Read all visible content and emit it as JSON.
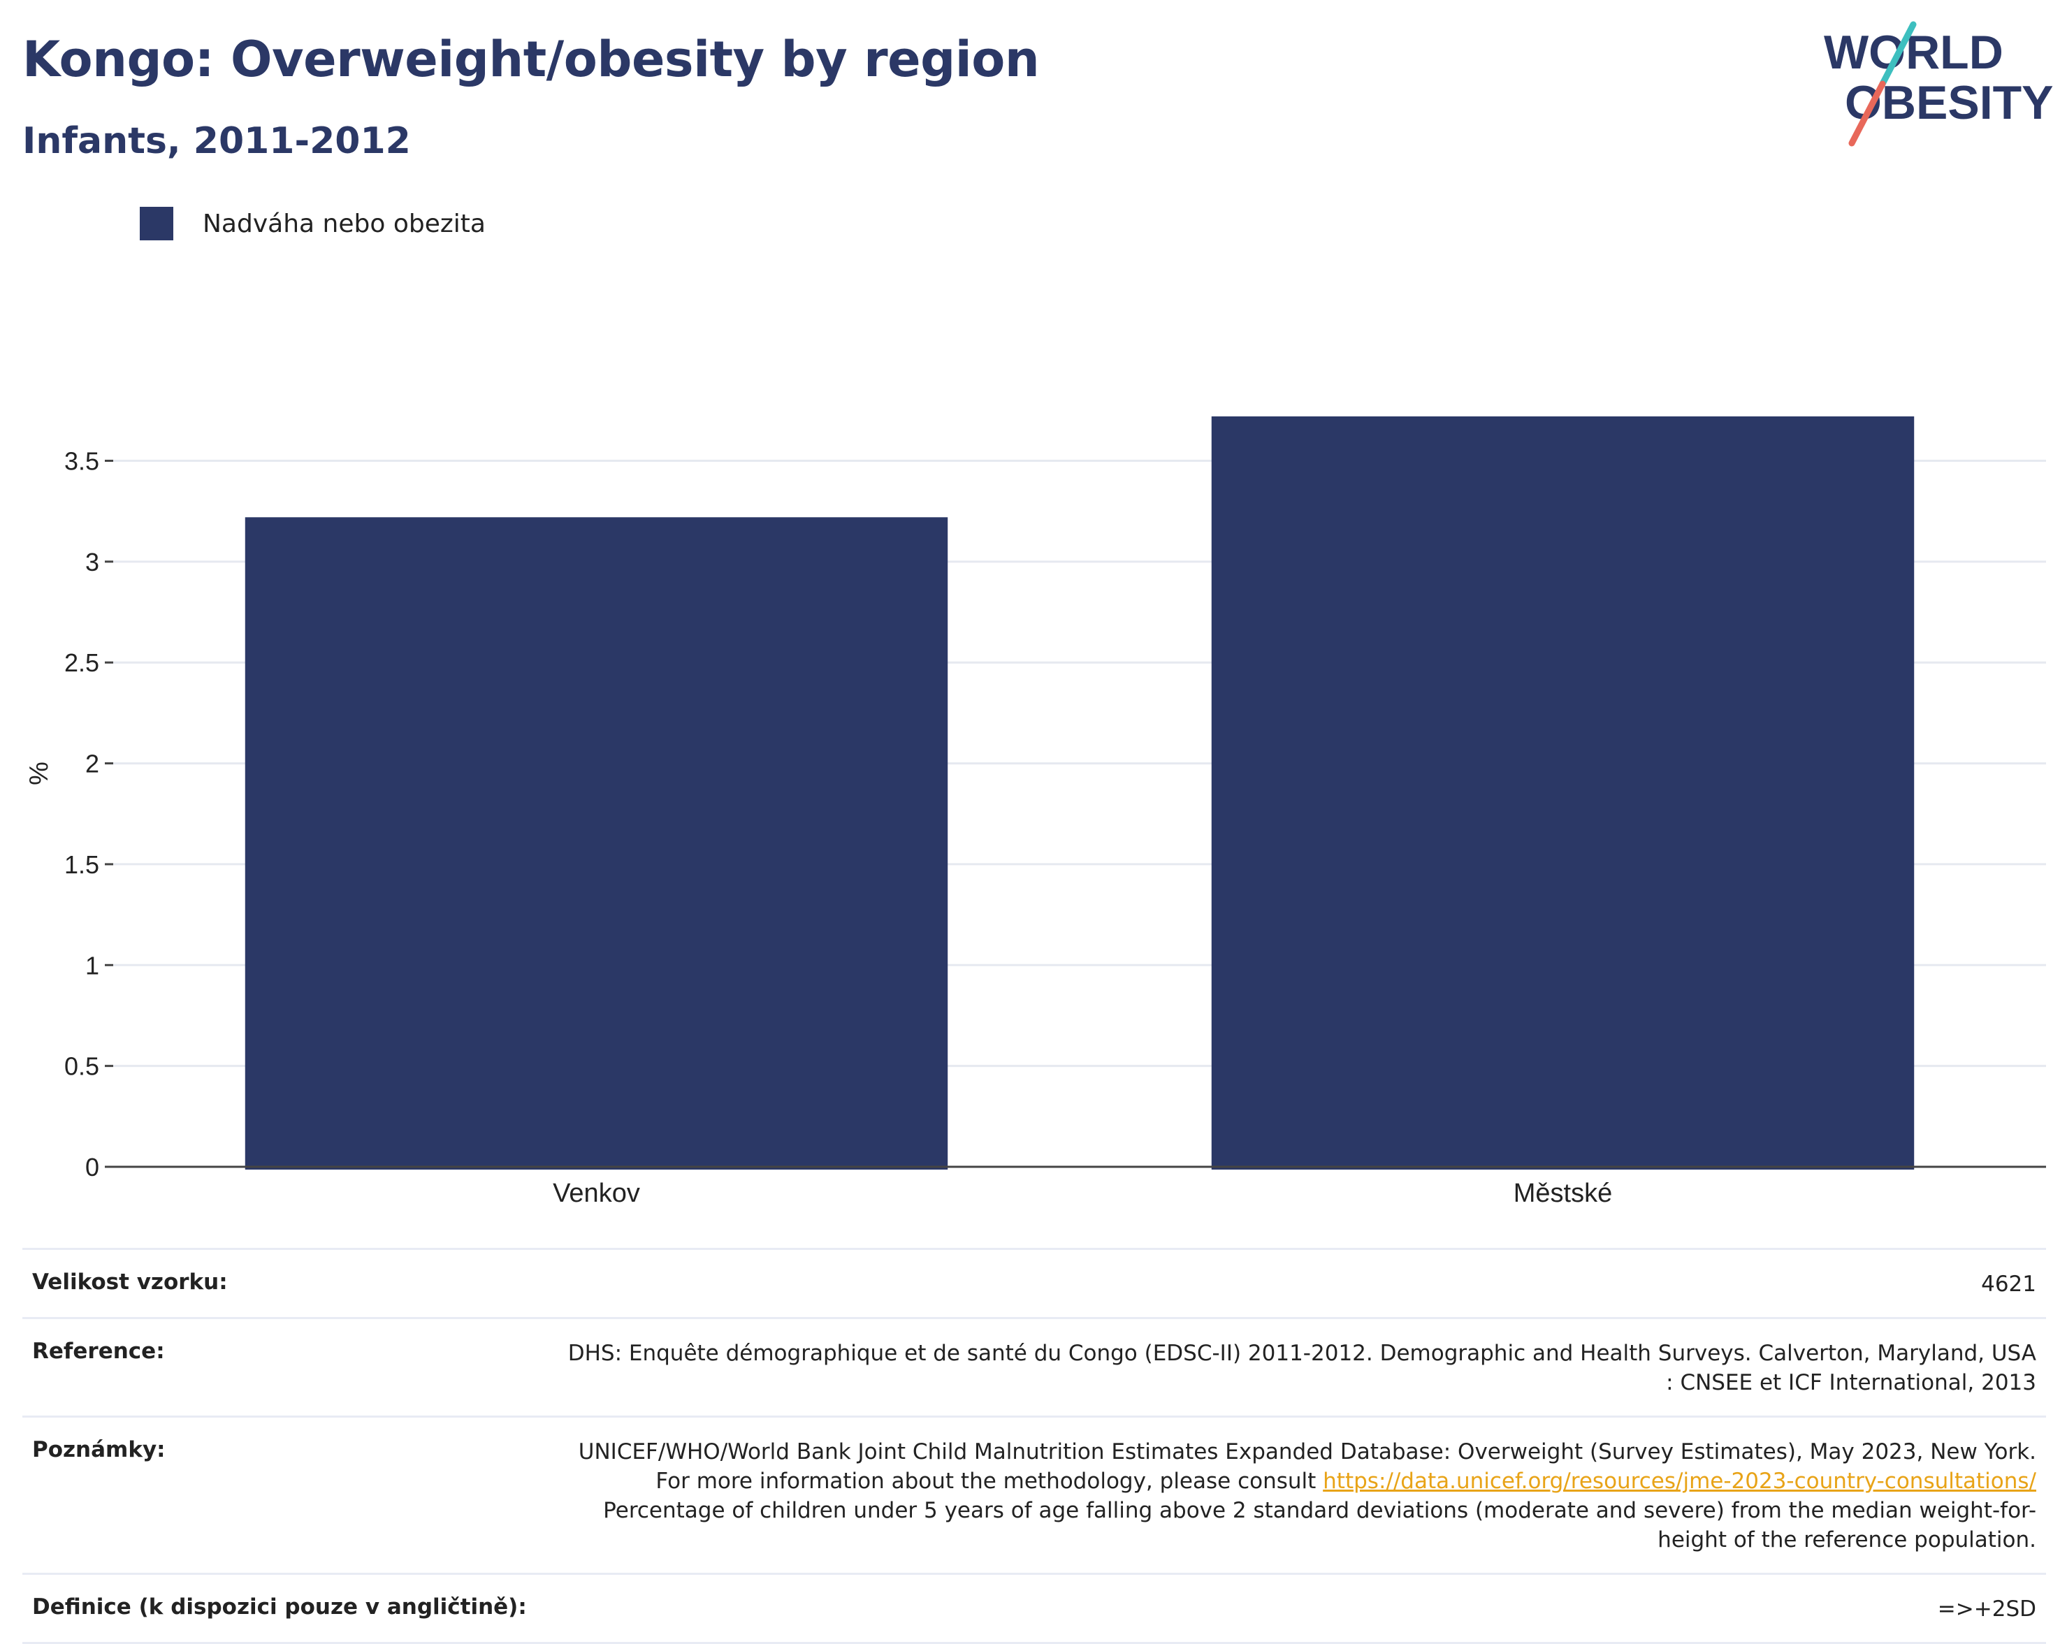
{
  "header": {
    "title": "Kongo: Overweight/obesity by region",
    "subtitle": "Infants, 2011-2012"
  },
  "logo": {
    "line1": "WORLD",
    "line2": "OBESITY",
    "slash_colors": [
      "#3dbfbf",
      "#e8685a"
    ]
  },
  "legend": {
    "label": "Nadváha nebo obezita"
  },
  "colors": {
    "bar": "#2b3866",
    "grid": "#e6e9f0",
    "axis": "#444444",
    "link": "#e8a317",
    "title": "#2b3866"
  },
  "chart_data": {
    "type": "bar",
    "title": "Kongo: Overweight/obesity by region",
    "subtitle": "Infants, 2011-2012",
    "categories": [
      "Venkov",
      "Městské"
    ],
    "series": [
      {
        "name": "Nadváha nebo obezita",
        "values": [
          3.22,
          3.72
        ]
      }
    ],
    "xlabel": "",
    "ylabel": "%",
    "ylim": [
      0,
      3.9
    ],
    "yticks": [
      0,
      0.5,
      1,
      1.5,
      2,
      2.5,
      3,
      3.5
    ],
    "ytick_labels": [
      "0",
      "0.5",
      "1",
      "1.5",
      "2",
      "2.5",
      "3",
      "3.5"
    ],
    "grid": true,
    "legend_position": "top-left"
  },
  "meta": {
    "sample_label": "Velikost vzorku:",
    "sample_value": "4621",
    "reference_label": "Reference:",
    "reference_value": "DHS: Enquête démographique et de santé du Congo (EDSC-II) 2011-2012. Demographic and Health Surveys. Calverton, Maryland, USA : CNSEE et ICF International, 2013",
    "notes_label": "Poznámky:",
    "notes_text_before": "UNICEF/WHO/World Bank Joint Child Malnutrition Estimates Expanded Database: Overweight (Survey Estimates), May 2023, New York. For more information about the methodology, please consult ",
    "notes_link": "https://data.unicef.org/resources/jme-2023-country-consultations/",
    "notes_text_after": " Percentage of children under 5 years of age falling above 2 standard deviations (moderate and severe) from the median weight-for-height of the reference population.",
    "definition_label": "Definice (k dispozici pouze v angličtině):",
    "definition_value": "=>+2SD"
  }
}
